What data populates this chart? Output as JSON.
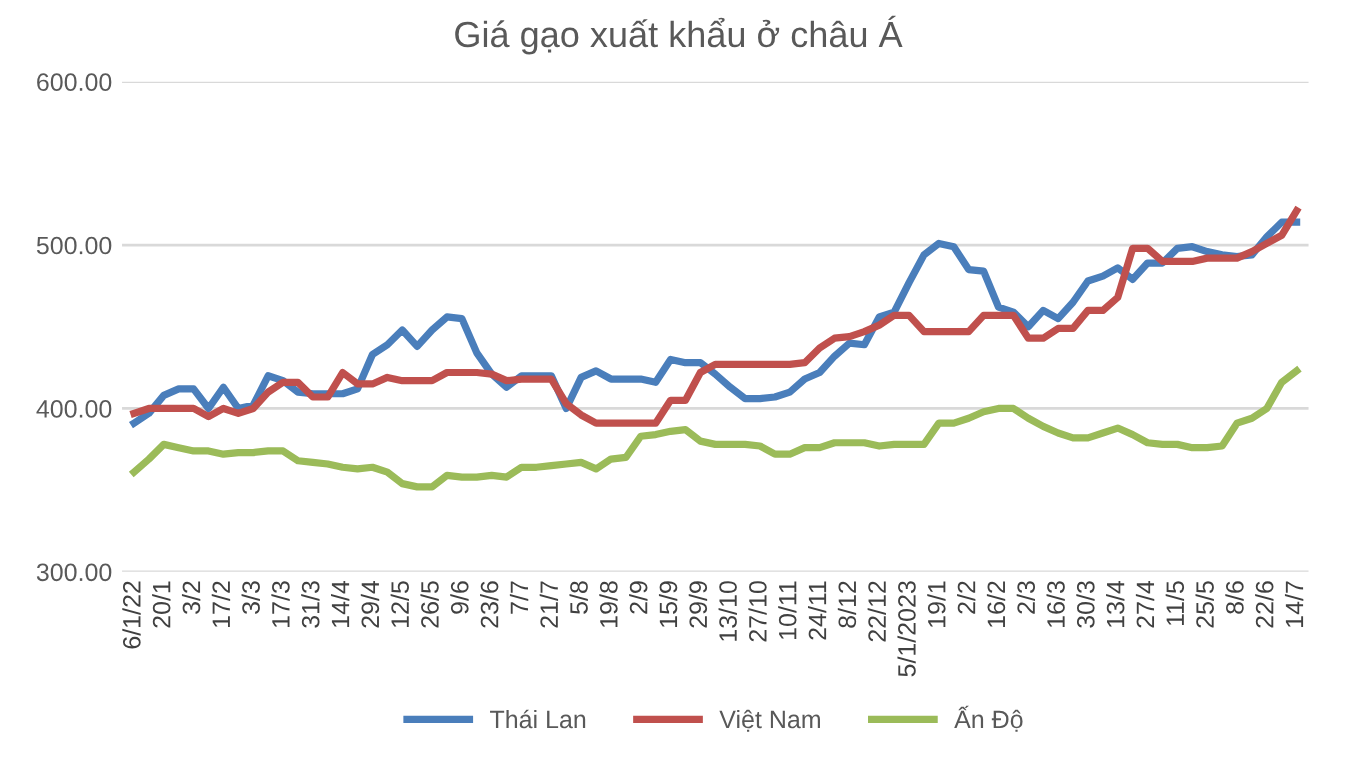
{
  "chart_data": {
    "type": "line",
    "title": "Giá gạo xuất khẩu ở châu Á",
    "categories": [
      "6/1/22",
      null,
      "20/1",
      null,
      "3/2",
      null,
      "17/2",
      null,
      "3/3",
      null,
      "17/3",
      null,
      "31/3",
      null,
      "14/4",
      null,
      "29/4",
      null,
      "12/5",
      null,
      "26/5",
      null,
      "9/6",
      null,
      "23/6",
      null,
      "7/7",
      null,
      "21/7",
      null,
      "5/8",
      null,
      "19/8",
      null,
      "2/9",
      null,
      "15/9",
      null,
      "29/9",
      null,
      "13/10",
      null,
      "27/10",
      null,
      "10/11",
      null,
      "24/11",
      null,
      "8/12",
      null,
      "22/12",
      null,
      "5/1/2023",
      null,
      "19/1",
      null,
      "2/2",
      null,
      "16/2",
      null,
      "2/3",
      null,
      "16/3",
      null,
      "30/3",
      null,
      "13/4",
      null,
      "27/4",
      null,
      "11/5",
      null,
      "25/5",
      null,
      "8/6",
      null,
      "22/6",
      null,
      "14/7"
    ],
    "series": [
      {
        "name": "Thái Lan",
        "color": "#4a7ebb",
        "values": [
          391,
          397,
          408,
          412,
          412,
          400,
          413,
          400,
          402,
          420,
          417,
          410,
          409,
          409,
          409,
          412,
          433,
          439,
          448,
          438,
          448,
          456,
          455,
          434,
          421,
          413,
          420,
          420,
          420,
          400,
          419,
          423,
          418,
          418,
          418,
          416,
          430,
          428,
          428,
          421,
          413,
          406,
          406,
          407,
          410,
          418,
          422,
          432,
          440,
          439,
          456,
          459,
          477,
          494,
          501,
          499,
          485,
          484,
          462,
          459,
          450,
          460,
          455,
          465,
          478,
          481,
          486,
          479,
          489,
          489,
          498,
          499,
          496,
          494,
          493,
          494,
          505,
          514,
          514
        ]
      },
      {
        "name": "Việt Nam",
        "color": "#c0504d",
        "values": [
          397,
          400,
          400,
          400,
          400,
          395,
          400,
          397,
          400,
          410,
          416,
          416,
          407,
          407,
          422,
          415,
          415,
          419,
          417,
          417,
          417,
          422,
          422,
          422,
          421,
          417,
          418,
          418,
          418,
          403,
          396,
          391,
          391,
          391,
          391,
          391,
          405,
          405,
          422,
          427,
          427,
          427,
          427,
          427,
          427,
          428,
          437,
          443,
          444,
          447,
          451,
          457,
          457,
          447,
          447,
          447,
          447,
          457,
          457,
          457,
          443,
          443,
          449,
          449,
          460,
          460,
          468,
          498,
          498,
          490,
          490,
          490,
          492,
          492,
          492,
          496,
          501,
          506,
          521
        ]
      },
      {
        "name": "Ấn Độ",
        "color": "#9bbb59",
        "values": [
          361,
          369,
          378,
          376,
          374,
          374,
          372,
          373,
          373,
          374,
          374,
          368,
          367,
          366,
          364,
          363,
          364,
          361,
          354,
          352,
          352,
          359,
          358,
          358,
          359,
          358,
          364,
          364,
          365,
          366,
          367,
          363,
          369,
          370,
          383,
          384,
          386,
          387,
          380,
          378,
          378,
          378,
          377,
          372,
          372,
          376,
          376,
          379,
          379,
          379,
          377,
          378,
          378,
          378,
          391,
          391,
          394,
          398,
          400,
          400,
          394,
          389,
          385,
          382,
          382,
          385,
          388,
          384,
          379,
          378,
          378,
          376,
          376,
          377,
          391,
          394,
          400,
          416,
          423
        ]
      }
    ],
    "ylim": [
      300,
      600
    ],
    "yticks": [
      {
        "value": 300,
        "label": "300.00"
      },
      {
        "value": 400,
        "label": "400.00"
      },
      {
        "value": 500,
        "label": "500.00"
      },
      {
        "value": 600,
        "label": "600.00"
      }
    ],
    "grid": "y",
    "legend": "bottom",
    "marker": "none",
    "line_style": "solid"
  }
}
